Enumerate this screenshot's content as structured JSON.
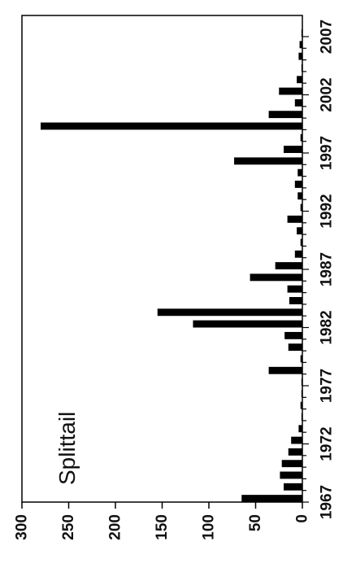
{
  "chart_data": {
    "type": "bar",
    "orientation": "horizontal",
    "annotation": "Splittail",
    "xlim": [
      0,
      300
    ],
    "x_ticks": [
      0,
      50,
      100,
      150,
      200,
      250,
      300
    ],
    "year_range": [
      1967,
      2007
    ],
    "year_ticks": [
      1967,
      1972,
      1977,
      1982,
      1987,
      1992,
      1997,
      2002,
      2007
    ],
    "grid": false,
    "legend": "none",
    "bar_color": "#000000",
    "categories": [
      1967,
      1968,
      1969,
      1970,
      1971,
      1972,
      1973,
      1974,
      1975,
      1976,
      1977,
      1978,
      1979,
      1980,
      1981,
      1982,
      1983,
      1984,
      1985,
      1986,
      1987,
      1988,
      1989,
      1990,
      1991,
      1992,
      1993,
      1994,
      1995,
      1996,
      1997,
      1998,
      1999,
      2000,
      2001,
      2002,
      2003,
      2004,
      2005,
      2006,
      2007
    ],
    "values": [
      65,
      20,
      24,
      22,
      15,
      12,
      4,
      1,
      2,
      1,
      1,
      36,
      2,
      15,
      19,
      117,
      155,
      14,
      16,
      56,
      29,
      8,
      2,
      6,
      16,
      2,
      5,
      8,
      5,
      73,
      20,
      2,
      280,
      36,
      8,
      25,
      6,
      1,
      4,
      3,
      1
    ]
  }
}
